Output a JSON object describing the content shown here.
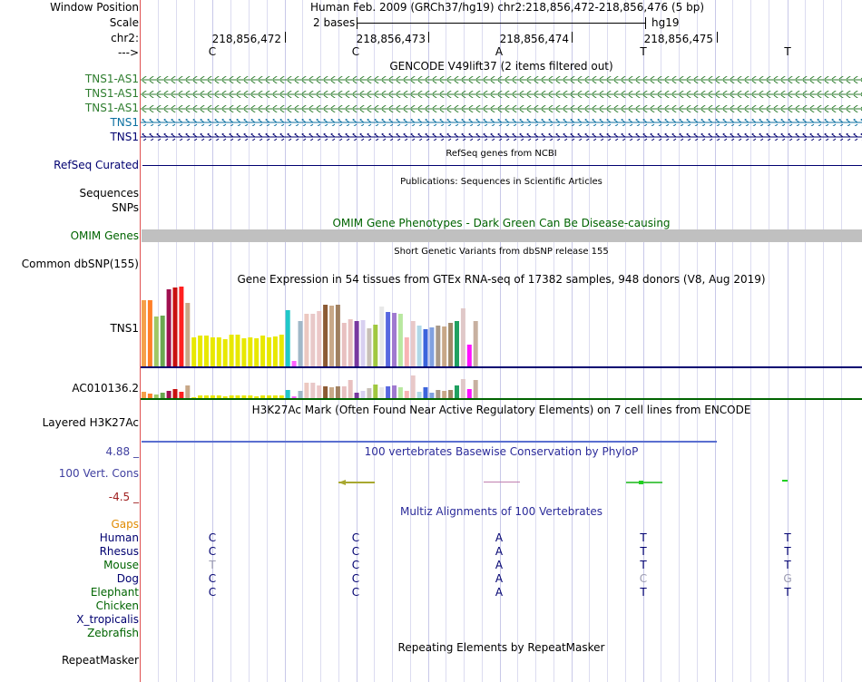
{
  "labels": {
    "window_position": "Window Position",
    "scale": "Scale",
    "chrom": "chr2:",
    "strand": "--->",
    "tns1_as1_a": "TNS1-AS1",
    "tns1_as1_b": "TNS1-AS1",
    "tns1_as1_c": "TNS1-AS1",
    "tns1_a": "TNS1",
    "tns1_b": "TNS1",
    "refseq": "RefSeq Curated",
    "sequences": "Sequences",
    "snps": "SNPs",
    "omim": "OMIM Genes",
    "common_snp": "Common dbSNP(155)",
    "gtex_tns1": "TNS1",
    "gtex_ac": "AC010136.2",
    "h3k27ac": "Layered H3K27Ac",
    "cons_max": "4.88 _",
    "cons_name": "100 Vert. Cons",
    "cons_min": "-4.5 _",
    "gaps": "Gaps",
    "human": "Human",
    "rhesus": "Rhesus",
    "mouse": "Mouse",
    "dog": "Dog",
    "elephant": "Elephant",
    "chicken": "Chicken",
    "xtrop": "X_tropicalis",
    "zebrafish": "Zebrafish",
    "repeatmasker": "RepeatMasker"
  },
  "header": {
    "position": "Human Feb. 2009 (GRCh37/hg19)   chr2:218,856,472-218,856,476 (5 bp)",
    "scale_text": "2 bases",
    "assembly": "hg19",
    "coords": [
      "218,856,472",
      "218,856,473",
      "218,856,474",
      "218,856,475"
    ]
  },
  "bases": [
    "C",
    "C",
    "A",
    "T",
    "T"
  ],
  "titles": {
    "gencode": "GENCODE V49lift37 (2 items filtered out)",
    "refseq": "RefSeq genes from NCBI",
    "publications": "Publications: Sequences in Scientific Articles",
    "omim": "OMIM Gene Phenotypes - Dark Green Can Be Disease-causing",
    "dbsnp": "Short Genetic Variants from dbSNP release 155",
    "gtex": "Gene Expression in 54 tissues from GTEx RNA-seq of 17382 samples, 948 donors (V8, Aug 2019)",
    "h3k27ac": "H3K27Ac Mark (Often Found Near Active Regulatory Elements) on 7 cell lines from ENCODE",
    "phylop": "100 vertebrates Basewise Conservation by PhyloP",
    "multiz": "Multiz Alignments of 100 Vertebrates",
    "repeatmasker": "Repeating Elements by RepeatMasker"
  },
  "alignment": {
    "human": [
      "C",
      "C",
      "A",
      "T",
      "T"
    ],
    "rhesus": [
      "C",
      "C",
      "A",
      "T",
      "T"
    ],
    "mouse": [
      "T",
      "C",
      "A",
      "T",
      "T"
    ],
    "dog": [
      "C",
      "C",
      "A",
      "C",
      "G"
    ],
    "elephant": [
      "C",
      "C",
      "A",
      "T",
      "T"
    ]
  },
  "colors": {
    "gene_green": "#2e7d2e",
    "gene_blue": "#0a6fa0",
    "navy": "#000070",
    "omim_bar": "#c0c0c0",
    "h3k27ac_line": "#5a6fd0"
  },
  "chart_data": [
    {
      "type": "bar",
      "title": "TNS1",
      "series": [
        {
          "name": "TNS1",
          "values": [
            85,
            86,
            64,
            65,
            100,
            102,
            103,
            82,
            37,
            40,
            40,
            37,
            37,
            35,
            41,
            41,
            36,
            38,
            36,
            40,
            38,
            39,
            41,
            73,
            7,
            58,
            68,
            68,
            71,
            80,
            79,
            80,
            56,
            61,
            58,
            60,
            49,
            54,
            77,
            70,
            69,
            68,
            38,
            58,
            53,
            48,
            50,
            53,
            52,
            56,
            59,
            75,
            28,
            59
          ]
        }
      ],
      "colors": [
        "#f5a04a",
        "#ff7f28",
        "#a0c864",
        "#6aa850",
        "#a01050",
        "#c81010",
        "#ff2020",
        "#c8a888",
        "#e8e800",
        "#e8e800",
        "#e8e800",
        "#e8e800",
        "#e8e800",
        "#e8e800",
        "#e8e800",
        "#e8e800",
        "#e8e800",
        "#e8e800",
        "#e8e800",
        "#e8e800",
        "#e8e800",
        "#e8e800",
        "#e8e800",
        "#20c8c8",
        "#ff60ff",
        "#a0b8c8",
        "#ecc8c0",
        "#e8c8c8",
        "#ecc8c8",
        "#8c5a34",
        "#c8a888",
        "#a08060",
        "#e8c0c0",
        "#e8c0c0",
        "#7838a0",
        "#d8d0f0",
        "#c8c0b8",
        "#a0c840",
        "#e8e8e8",
        "#5868e0",
        "#a07ad0",
        "#b8e8a0",
        "#f8b4b4",
        "#e8c8c8",
        "#b0d8e8",
        "#3c64dc",
        "#80a0e0",
        "#a89888",
        "#c8a888",
        "#a08868",
        "#20a060",
        "#e0c8c8",
        "#ff10ff",
        "#c8b0a0"
      ]
    },
    {
      "type": "bar",
      "title": "AC010136.2",
      "series": [
        {
          "name": "AC010136.2",
          "values": [
            22,
            15,
            12,
            18,
            24,
            30,
            22,
            42,
            4,
            8,
            8,
            8,
            8,
            6,
            8,
            8,
            8,
            8,
            6,
            10,
            8,
            10,
            8,
            26,
            5,
            24,
            52,
            52,
            44,
            38,
            36,
            40,
            38,
            62,
            18,
            24,
            32,
            46,
            36,
            40,
            44,
            36,
            24,
            76,
            22,
            36,
            18,
            28,
            24,
            28,
            42,
            64,
            30,
            62
          ]
        }
      ],
      "colors": [
        "#f5a04a",
        "#ff7f28",
        "#a0c864",
        "#6aa850",
        "#a01050",
        "#c81010",
        "#ff2020",
        "#c8a888",
        "#e8e800",
        "#e8e800",
        "#e8e800",
        "#e8e800",
        "#e8e800",
        "#e8e800",
        "#e8e800",
        "#e8e800",
        "#e8e800",
        "#e8e800",
        "#e8e800",
        "#e8e800",
        "#e8e800",
        "#e8e800",
        "#e8e800",
        "#20c8c8",
        "#ff60ff",
        "#a0b8c8",
        "#ecc8c0",
        "#e8c8c8",
        "#ecc8c8",
        "#8c5a34",
        "#c8a888",
        "#a08060",
        "#e8c0c0",
        "#e8c0c0",
        "#7838a0",
        "#d8d0f0",
        "#c8c0b8",
        "#a0c840",
        "#e8e8e8",
        "#5868e0",
        "#a07ad0",
        "#b8e8a0",
        "#f8b4b4",
        "#e8c8c8",
        "#b0d8e8",
        "#3c64dc",
        "#80a0e0",
        "#a89888",
        "#c8a888",
        "#a08868",
        "#20a060",
        "#e0c8c8",
        "#ff10ff",
        "#c8b0a0"
      ]
    }
  ]
}
